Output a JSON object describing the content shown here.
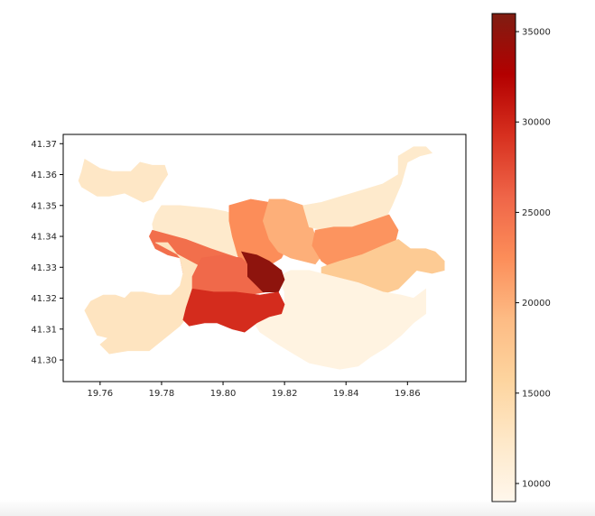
{
  "chart_data": {
    "type": "choropleth",
    "xlim": [
      19.748,
      19.879
    ],
    "ylim": [
      41.293,
      41.373
    ],
    "x_ticks": [
      "19.76",
      "19.78",
      "19.80",
      "19.82",
      "19.84",
      "19.86"
    ],
    "y_ticks": [
      "41.30",
      "41.31",
      "41.32",
      "41.33",
      "41.34",
      "41.35",
      "41.36",
      "41.37"
    ],
    "colorbar": {
      "colormap": "OrRd",
      "range": [
        9000,
        36000
      ],
      "ticks": [
        "10000",
        "15000",
        "20000",
        "25000",
        "30000",
        "35000"
      ],
      "stops": [
        "#fff7ec",
        "#fee8c8",
        "#fdd49e",
        "#fdbb84",
        "#fc8d59",
        "#ef6548",
        "#d7301f",
        "#b30000",
        "#7f1d12"
      ]
    },
    "regions": [
      {
        "value": 12500,
        "points": [
          [
            19.755,
            41.365
          ],
          [
            19.76,
            41.362
          ],
          [
            19.764,
            41.361
          ],
          [
            19.77,
            41.361
          ],
          [
            19.773,
            41.364
          ],
          [
            19.777,
            41.363
          ],
          [
            19.781,
            41.363
          ],
          [
            19.782,
            41.36
          ],
          [
            19.78,
            41.357
          ],
          [
            19.777,
            41.352
          ],
          [
            19.774,
            41.351
          ],
          [
            19.772,
            41.352
          ],
          [
            19.768,
            41.354
          ],
          [
            19.763,
            41.353
          ],
          [
            19.759,
            41.353
          ],
          [
            19.754,
            41.356
          ],
          [
            19.753,
            41.358
          ],
          [
            19.754,
            41.361
          ]
        ]
      },
      {
        "value": 12000,
        "points": [
          [
            19.78,
            41.35
          ],
          [
            19.786,
            41.35
          ],
          [
            19.796,
            41.349
          ],
          [
            19.801,
            41.348
          ],
          [
            19.804,
            41.347
          ],
          [
            19.805,
            41.341
          ],
          [
            19.806,
            41.334
          ],
          [
            19.802,
            41.333
          ],
          [
            19.794,
            41.334
          ],
          [
            19.789,
            41.336
          ],
          [
            19.782,
            41.338
          ],
          [
            19.778,
            41.338
          ],
          [
            19.777,
            41.344
          ],
          [
            19.778,
            41.347
          ]
        ]
      },
      {
        "value": 22500,
        "points": [
          [
            19.802,
            41.35
          ],
          [
            19.809,
            41.352
          ],
          [
            19.815,
            41.351
          ],
          [
            19.821,
            41.35
          ],
          [
            19.823,
            41.346
          ],
          [
            19.822,
            41.339
          ],
          [
            19.819,
            41.333
          ],
          [
            19.814,
            41.33
          ],
          [
            19.808,
            41.331
          ],
          [
            19.805,
            41.333
          ],
          [
            19.803,
            41.34
          ],
          [
            19.802,
            41.345
          ]
        ]
      },
      {
        "value": 20000,
        "points": [
          [
            19.815,
            41.352
          ],
          [
            19.82,
            41.352
          ],
          [
            19.826,
            41.35
          ],
          [
            19.828,
            41.346
          ],
          [
            19.83,
            41.34
          ],
          [
            19.833,
            41.335
          ],
          [
            19.83,
            41.331
          ],
          [
            19.822,
            41.333
          ],
          [
            19.818,
            41.335
          ],
          [
            19.815,
            41.339
          ],
          [
            19.813,
            41.345
          ]
        ]
      },
      {
        "value": 12000,
        "points": [
          [
            19.826,
            41.35
          ],
          [
            19.832,
            41.351
          ],
          [
            19.842,
            41.354
          ],
          [
            19.852,
            41.357
          ],
          [
            19.857,
            41.36
          ],
          [
            19.857,
            41.366
          ],
          [
            19.862,
            41.369
          ],
          [
            19.866,
            41.369
          ],
          [
            19.868,
            41.367
          ],
          [
            19.864,
            41.366
          ],
          [
            19.86,
            41.364
          ],
          [
            19.858,
            41.357
          ],
          [
            19.855,
            41.35
          ],
          [
            19.852,
            41.344
          ],
          [
            19.845,
            41.343
          ],
          [
            19.838,
            41.342
          ],
          [
            19.833,
            41.342
          ],
          [
            19.828,
            41.343
          ]
        ]
      },
      {
        "value": 22000,
        "points": [
          [
            19.83,
            41.342
          ],
          [
            19.836,
            41.343
          ],
          [
            19.842,
            41.343
          ],
          [
            19.848,
            41.345
          ],
          [
            19.854,
            41.347
          ],
          [
            19.857,
            41.342
          ],
          [
            19.856,
            41.338
          ],
          [
            19.852,
            41.337
          ],
          [
            19.845,
            41.334
          ],
          [
            19.84,
            41.332
          ],
          [
            19.835,
            41.33
          ],
          [
            19.832,
            41.332
          ],
          [
            19.829,
            41.337
          ]
        ]
      },
      {
        "value": 17000,
        "points": [
          [
            19.832,
            41.33
          ],
          [
            19.838,
            41.332
          ],
          [
            19.845,
            41.334
          ],
          [
            19.852,
            41.337
          ],
          [
            19.857,
            41.339
          ],
          [
            19.861,
            41.336
          ],
          [
            19.866,
            41.336
          ],
          [
            19.869,
            41.335
          ],
          [
            19.872,
            41.332
          ],
          [
            19.872,
            41.329
          ],
          [
            19.868,
            41.328
          ],
          [
            19.863,
            41.329
          ],
          [
            19.86,
            41.326
          ],
          [
            19.857,
            41.323
          ],
          [
            19.851,
            41.321
          ],
          [
            19.844,
            41.323
          ],
          [
            19.838,
            41.325
          ],
          [
            19.832,
            41.327
          ]
        ]
      },
      {
        "value": 10000,
        "points": [
          [
            19.818,
            41.327
          ],
          [
            19.822,
            41.329
          ],
          [
            19.828,
            41.329
          ],
          [
            19.836,
            41.327
          ],
          [
            19.844,
            41.325
          ],
          [
            19.852,
            41.322
          ],
          [
            19.858,
            41.321
          ],
          [
            19.862,
            41.32
          ],
          [
            19.866,
            41.323
          ],
          [
            19.866,
            41.315
          ],
          [
            19.862,
            41.312
          ],
          [
            19.858,
            41.308
          ],
          [
            19.853,
            41.304
          ],
          [
            19.848,
            41.301
          ],
          [
            19.844,
            41.298
          ],
          [
            19.838,
            41.297
          ],
          [
            19.833,
            41.298
          ],
          [
            19.828,
            41.299
          ],
          [
            19.823,
            41.302
          ],
          [
            19.818,
            41.305
          ],
          [
            19.812,
            41.309
          ],
          [
            19.81,
            41.312
          ],
          [
            19.815,
            41.314
          ],
          [
            19.82,
            41.318
          ],
          [
            19.82,
            41.322
          ]
        ]
      },
      {
        "value": 25000,
        "points": [
          [
            19.777,
            41.342
          ],
          [
            19.788,
            41.339
          ],
          [
            19.796,
            41.336
          ],
          [
            19.805,
            41.333
          ],
          [
            19.81,
            41.33
          ],
          [
            19.813,
            41.327
          ],
          [
            19.81,
            41.324
          ],
          [
            19.803,
            41.323
          ],
          [
            19.795,
            41.322
          ],
          [
            19.789,
            41.32
          ],
          [
            19.787,
            41.323
          ],
          [
            19.787,
            41.328
          ],
          [
            19.786,
            41.333
          ],
          [
            19.782,
            41.334
          ],
          [
            19.778,
            41.336
          ],
          [
            19.776,
            41.34
          ]
        ]
      },
      {
        "value": 13000,
        "points": [
          [
            19.778,
            41.338
          ],
          [
            19.782,
            41.338
          ],
          [
            19.786,
            41.333
          ],
          [
            19.787,
            41.328
          ],
          [
            19.786,
            41.324
          ],
          [
            19.783,
            41.321
          ],
          [
            19.779,
            41.321
          ],
          [
            19.774,
            41.322
          ],
          [
            19.77,
            41.322
          ],
          [
            19.768,
            41.32
          ],
          [
            19.765,
            41.321
          ],
          [
            19.761,
            41.321
          ],
          [
            19.757,
            41.319
          ],
          [
            19.755,
            41.316
          ],
          [
            19.757,
            41.312
          ],
          [
            19.759,
            41.308
          ],
          [
            19.763,
            41.307
          ],
          [
            19.768,
            41.306
          ],
          [
            19.772,
            41.308
          ],
          [
            19.778,
            41.31
          ],
          [
            19.781,
            41.313
          ],
          [
            19.782,
            41.318
          ],
          [
            19.778,
            41.32
          ],
          [
            19.773,
            41.32
          ],
          [
            19.769,
            41.316
          ],
          [
            19.766,
            41.31
          ],
          [
            19.76,
            41.305
          ],
          [
            19.763,
            41.302
          ],
          [
            19.769,
            41.303
          ],
          [
            19.776,
            41.303
          ],
          [
            19.781,
            41.307
          ],
          [
            19.786,
            41.311
          ],
          [
            19.79,
            41.316
          ],
          [
            19.789,
            41.32
          ],
          [
            19.795,
            41.322
          ],
          [
            19.798,
            41.326
          ],
          [
            19.793,
            41.33
          ]
        ]
      },
      {
        "value": 25500,
        "points": [
          [
            19.793,
            41.333
          ],
          [
            19.8,
            41.334
          ],
          [
            19.806,
            41.333
          ],
          [
            19.809,
            41.33
          ],
          [
            19.812,
            41.327
          ],
          [
            19.814,
            41.322
          ],
          [
            19.808,
            41.321
          ],
          [
            19.8,
            41.32
          ],
          [
            19.793,
            41.321
          ],
          [
            19.79,
            41.323
          ],
          [
            19.79,
            41.327
          ]
        ]
      },
      {
        "value": 35000,
        "points": [
          [
            19.806,
            41.335
          ],
          [
            19.811,
            41.334
          ],
          [
            19.815,
            41.332
          ],
          [
            19.819,
            41.329
          ],
          [
            19.82,
            41.326
          ],
          [
            19.818,
            41.322
          ],
          [
            19.813,
            41.322
          ],
          [
            19.811,
            41.324
          ],
          [
            19.808,
            41.327
          ],
          [
            19.808,
            41.331
          ]
        ]
      },
      {
        "value": 29500,
        "points": [
          [
            19.79,
            41.323
          ],
          [
            19.797,
            41.322
          ],
          [
            19.804,
            41.322
          ],
          [
            19.812,
            41.321
          ],
          [
            19.818,
            41.322
          ],
          [
            19.82,
            41.318
          ],
          [
            19.819,
            41.315
          ],
          [
            19.815,
            41.314
          ],
          [
            19.811,
            41.312
          ],
          [
            19.807,
            41.309
          ],
          [
            19.803,
            41.31
          ],
          [
            19.798,
            41.312
          ],
          [
            19.794,
            41.312
          ],
          [
            19.789,
            41.311
          ],
          [
            19.787,
            41.313
          ],
          [
            19.788,
            41.317
          ]
        ]
      }
    ]
  }
}
